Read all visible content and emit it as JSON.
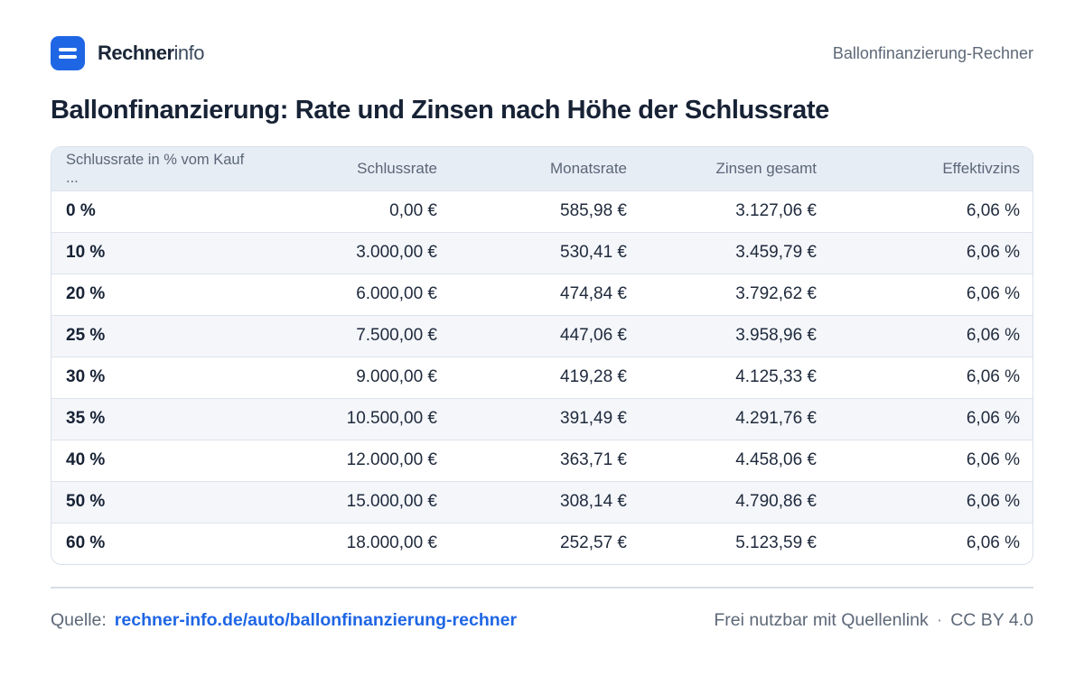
{
  "header": {
    "brand_bold": "Rechner",
    "brand_light": "info",
    "page_label": "Ballonfinanzierung-Rechner",
    "logo_icon": "equals-logo-icon",
    "accent_color": "#1f66e5"
  },
  "title": "Ballonfinanzierung: Rate und Zinsen nach Höhe der Schlussrate",
  "table": {
    "headers": [
      "Schlussrate in % vom Kauf ...",
      "Schlussrate",
      "Monatsrate",
      "Zinsen gesamt",
      "Effektivzins"
    ],
    "rows": [
      [
        "0 %",
        "0,00 €",
        "585,98 €",
        "3.127,06 €",
        "6,06 %"
      ],
      [
        "10 %",
        "3.000,00 €",
        "530,41 €",
        "3.459,79 €",
        "6,06 %"
      ],
      [
        "20 %",
        "6.000,00 €",
        "474,84 €",
        "3.792,62 €",
        "6,06 %"
      ],
      [
        "25 %",
        "7.500,00 €",
        "447,06 €",
        "3.958,96 €",
        "6,06 %"
      ],
      [
        "30 %",
        "9.000,00 €",
        "419,28 €",
        "4.125,33 €",
        "6,06 %"
      ],
      [
        "35 %",
        "10.500,00 €",
        "391,49 €",
        "4.291,76 €",
        "6,06 %"
      ],
      [
        "40 %",
        "12.000,00 €",
        "363,71 €",
        "4.458,06 €",
        "6,06 %"
      ],
      [
        "50 %",
        "15.000,00 €",
        "308,14 €",
        "4.790,86 €",
        "6,06 %"
      ],
      [
        "60 %",
        "18.000,00 €",
        "252,57 €",
        "5.123,59 €",
        "6,06 %"
      ]
    ]
  },
  "footer": {
    "source_label": "Quelle:",
    "source_link": "rechner-info.de/auto/ballonfinanzierung-rechner",
    "usage": "Frei nutzbar mit Quellenlink",
    "separator": "·",
    "license": "CC BY 4.0"
  }
}
